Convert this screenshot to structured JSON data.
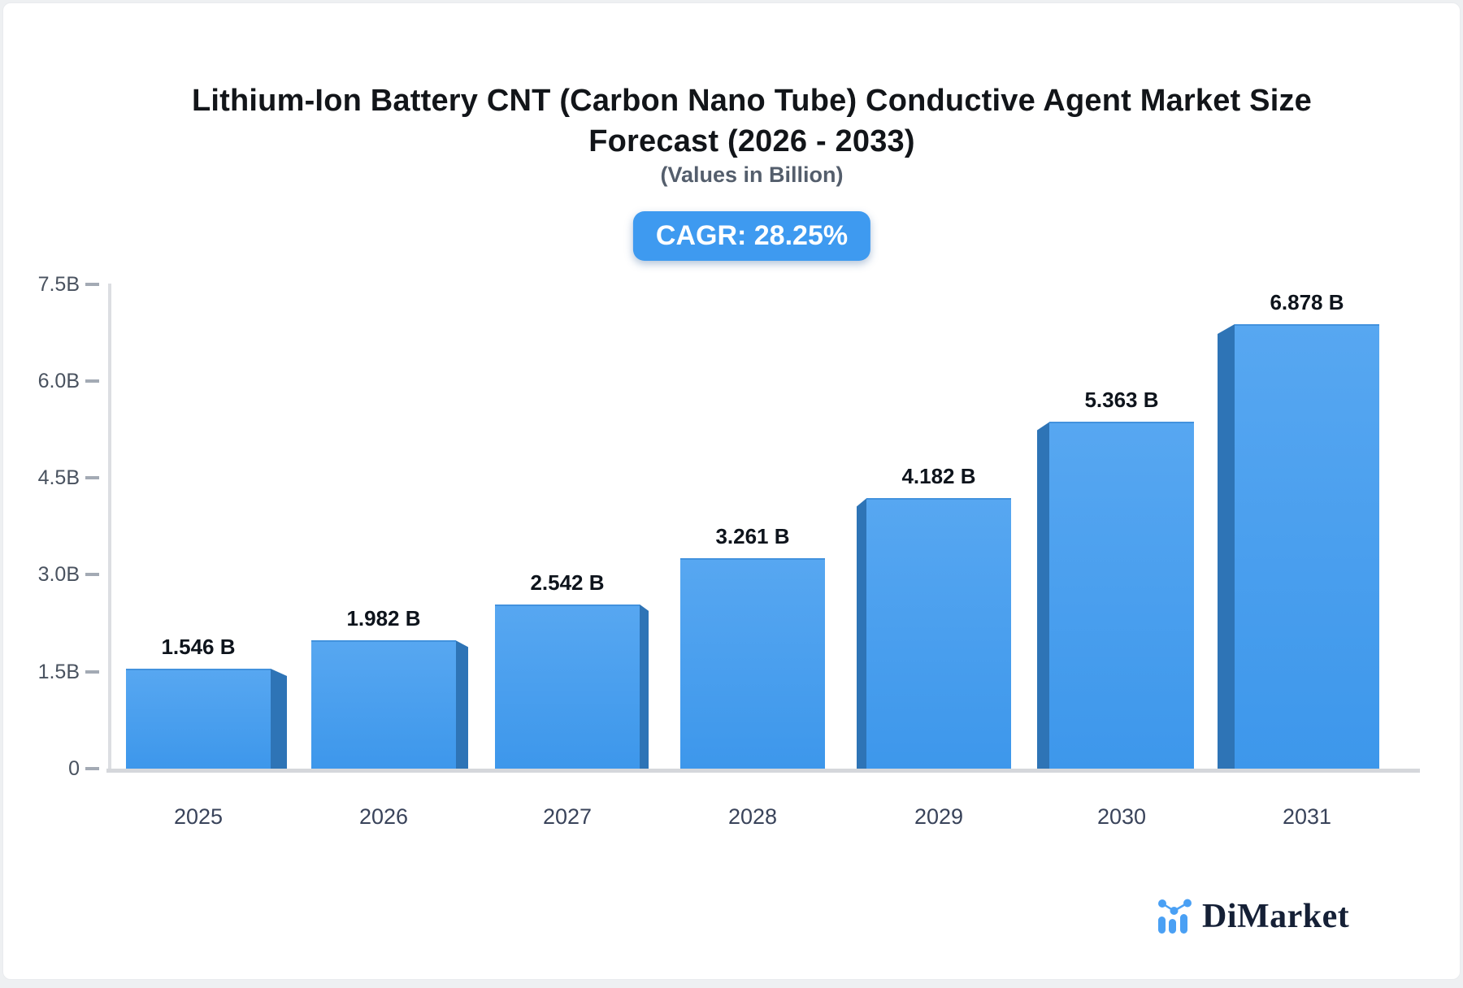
{
  "page": {
    "background": "#eef0f2",
    "card_background": "#ffffff"
  },
  "header": {
    "title_line1": "Lithium-Ion Battery CNT (Carbon Nano Tube) Conductive Agent Market Size",
    "title_line2": "Forecast (2026 - 2033)",
    "subtitle": "(Values in Billion)",
    "cagr_label": "CAGR: 28.25%",
    "badge_color": "#3e9af0"
  },
  "chart_data": {
    "type": "bar",
    "title": "Lithium-Ion Battery CNT (Carbon Nano Tube) Conductive Agent Market Size Forecast (2026 - 2033)",
    "subtitle": "(Values in Billion)",
    "cagr_percent": 28.25,
    "unit": "Billion",
    "categories": [
      "2025",
      "2026",
      "2027",
      "2028",
      "2029",
      "2030",
      "2031"
    ],
    "values": [
      1.546,
      1.982,
      2.542,
      3.261,
      4.182,
      5.363,
      6.878
    ],
    "value_labels": [
      "1.546 B",
      "1.982 B",
      "2.542 B",
      "3.261 B",
      "4.182 B",
      "5.363 B",
      "6.878 B"
    ],
    "y_ticks": [
      {
        "label": "7.5B",
        "value": 7.5
      },
      {
        "label": "6.0B",
        "value": 6.0
      },
      {
        "label": "4.5B",
        "value": 4.5
      },
      {
        "label": "3.0B",
        "value": 3.0
      },
      {
        "label": "1.5B",
        "value": 1.5
      },
      {
        "label": "0",
        "value": 0
      }
    ],
    "ylim": [
      0,
      7.5
    ],
    "grid": false,
    "legend": false,
    "bar_style": "3d",
    "colors": {
      "bar_top": "#57a7f1",
      "bar_bottom": "#3d97eb",
      "bar_side": "#2e74b6",
      "axis_line": "#d5d7db",
      "tick_dash": "#a3aab4"
    }
  },
  "footer": {
    "brand": "DiMarket",
    "logo_icon": "bar-line-chart-icon",
    "icon_color": "#4aa0f4",
    "brand_text_color": "#152036"
  }
}
